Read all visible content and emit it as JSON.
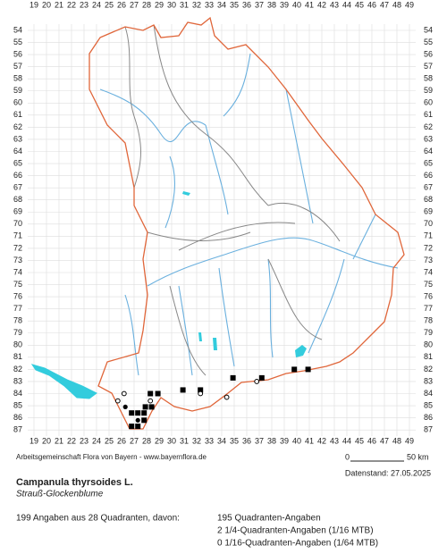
{
  "map": {
    "columns": [
      19,
      20,
      21,
      22,
      23,
      24,
      25,
      26,
      27,
      28,
      29,
      30,
      31,
      32,
      33,
      34,
      35,
      36,
      37,
      38,
      39,
      40,
      41,
      42,
      43,
      44,
      45,
      46,
      47,
      48,
      49
    ],
    "rows": [
      54,
      55,
      56,
      57,
      58,
      59,
      60,
      61,
      62,
      63,
      64,
      65,
      66,
      67,
      68,
      69,
      70,
      71,
      72,
      73,
      74,
      75,
      76,
      77,
      78,
      79,
      80,
      81,
      82,
      83,
      84,
      85,
      86,
      87
    ],
    "records": [
      {
        "col": 28.3,
        "row": 84.0,
        "kind": "square"
      },
      {
        "col": 28.9,
        "row": 84.0,
        "kind": "square"
      },
      {
        "col": 30.9,
        "row": 83.7,
        "kind": "square"
      },
      {
        "col": 32.3,
        "row": 83.7,
        "kind": "square"
      },
      {
        "col": 34.9,
        "row": 82.7,
        "kind": "square"
      },
      {
        "col": 37.2,
        "row": 82.7,
        "kind": "square"
      },
      {
        "col": 39.8,
        "row": 82.0,
        "kind": "square"
      },
      {
        "col": 40.9,
        "row": 82.0,
        "kind": "square"
      },
      {
        "col": 26.3,
        "row": 85.1,
        "kind": "dot"
      },
      {
        "col": 27.9,
        "row": 85.1,
        "kind": "square"
      },
      {
        "col": 28.4,
        "row": 85.1,
        "kind": "square"
      },
      {
        "col": 26.8,
        "row": 85.6,
        "kind": "square"
      },
      {
        "col": 27.3,
        "row": 85.6,
        "kind": "square"
      },
      {
        "col": 27.8,
        "row": 85.6,
        "kind": "square"
      },
      {
        "col": 27.3,
        "row": 86.2,
        "kind": "dot"
      },
      {
        "col": 27.8,
        "row": 86.2,
        "kind": "square"
      },
      {
        "col": 26.8,
        "row": 86.7,
        "kind": "square"
      },
      {
        "col": 27.3,
        "row": 86.7,
        "kind": "square"
      },
      {
        "col": 26.2,
        "row": 84.0,
        "kind": "circle"
      },
      {
        "col": 25.7,
        "row": 84.6,
        "kind": "circle"
      },
      {
        "col": 28.3,
        "row": 84.6,
        "kind": "circle"
      },
      {
        "col": 32.3,
        "row": 84.0,
        "kind": "circle"
      },
      {
        "col": 36.8,
        "row": 83.0,
        "kind": "circle"
      },
      {
        "col": 34.4,
        "row": 84.3,
        "kind": "circle"
      }
    ]
  },
  "footer": {
    "credit": "Arbeitsgemeinschaft Flora von Bayern - www.bayernflora.de",
    "scale_start": "0",
    "scale_end": "50 km",
    "date": "Datenstand: 27.05.2025",
    "species": "Campanula thyrsoides L.",
    "common_name": "Strauß-Glockenblume",
    "summary": "199 Angaben aus 28 Quadranten, davon:",
    "details": [
      "195 Quadranten-Angaben",
      "2 1/4-Quadranten-Angaben (1/16 MTB)",
      "0 1/16-Quadranten-Angaben (1/64 MTB)"
    ]
  }
}
